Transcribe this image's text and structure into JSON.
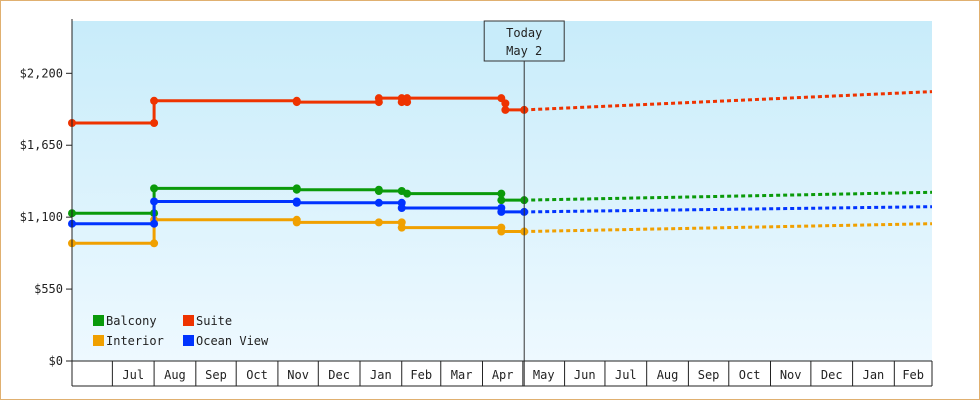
{
  "chart_data": {
    "type": "line",
    "title": "",
    "xlabel": "",
    "ylabel": "",
    "ylim": [
      0,
      2600
    ],
    "y_ticks": [
      0,
      550,
      1100,
      1650,
      2200
    ],
    "y_tick_labels": [
      "$0",
      "$550",
      "$1,100",
      "$1,650",
      "$2,200"
    ],
    "x_start": "2023-06-01",
    "x_end": "2025-03-01",
    "x_tick_labels": [
      "Jul",
      "Aug",
      "Sep",
      "Oct",
      "Nov",
      "Dec",
      "Jan",
      "Feb",
      "Mar",
      "Apr",
      "May",
      "Jun",
      "Jul",
      "Aug",
      "Sep",
      "Oct",
      "Nov",
      "Dec",
      "Jan",
      "Feb"
    ],
    "grid": false,
    "legend_position": "bottom-left",
    "today": {
      "line1": "Today",
      "line2": "May 2",
      "date": "2024-05-02"
    },
    "series": [
      {
        "name": "Balcony",
        "color": "#0a9a0a",
        "points": [
          [
            "2023-06-01",
            1130
          ],
          [
            "2023-08-01",
            1130
          ],
          [
            "2023-08-01",
            1320
          ],
          [
            "2023-11-15",
            1320
          ],
          [
            "2023-11-15",
            1310
          ],
          [
            "2024-01-15",
            1310
          ],
          [
            "2024-01-15",
            1300
          ],
          [
            "2024-02-01",
            1300
          ],
          [
            "2024-02-05",
            1280
          ],
          [
            "2024-04-15",
            1280
          ],
          [
            "2024-04-15",
            1230
          ],
          [
            "2024-05-02",
            1230
          ]
        ],
        "forecast": [
          [
            "2024-05-02",
            1230
          ],
          [
            "2025-03-01",
            1290
          ]
        ]
      },
      {
        "name": "Interior",
        "color": "#f0a000",
        "points": [
          [
            "2023-06-01",
            900
          ],
          [
            "2023-08-01",
            900
          ],
          [
            "2023-08-01",
            1080
          ],
          [
            "2023-11-15",
            1080
          ],
          [
            "2023-11-15",
            1060
          ],
          [
            "2024-01-15",
            1060
          ],
          [
            "2024-02-01",
            1060
          ],
          [
            "2024-02-01",
            1020
          ],
          [
            "2024-04-15",
            1020
          ],
          [
            "2024-04-15",
            990
          ],
          [
            "2024-05-02",
            990
          ]
        ],
        "forecast": [
          [
            "2024-05-02",
            990
          ],
          [
            "2025-03-01",
            1050
          ]
        ]
      },
      {
        "name": "Suite",
        "color": "#ee3300",
        "points": [
          [
            "2023-06-01",
            1820
          ],
          [
            "2023-08-01",
            1820
          ],
          [
            "2023-08-01",
            1990
          ],
          [
            "2023-11-15",
            1990
          ],
          [
            "2023-11-15",
            1980
          ],
          [
            "2024-01-15",
            1980
          ],
          [
            "2024-01-15",
            2010
          ],
          [
            "2024-02-01",
            2010
          ],
          [
            "2024-02-01",
            1980
          ],
          [
            "2024-02-05",
            1980
          ],
          [
            "2024-02-05",
            2010
          ],
          [
            "2024-04-15",
            2010
          ],
          [
            "2024-04-18",
            1970
          ],
          [
            "2024-04-18",
            1920
          ],
          [
            "2024-05-02",
            1920
          ]
        ],
        "forecast": [
          [
            "2024-05-02",
            1920
          ],
          [
            "2025-03-01",
            2060
          ]
        ]
      },
      {
        "name": "Ocean View",
        "color": "#0033ff",
        "points": [
          [
            "2023-06-01",
            1050
          ],
          [
            "2023-08-01",
            1050
          ],
          [
            "2023-08-01",
            1220
          ],
          [
            "2023-11-15",
            1220
          ],
          [
            "2023-11-15",
            1210
          ],
          [
            "2024-01-15",
            1210
          ],
          [
            "2024-02-01",
            1210
          ],
          [
            "2024-02-01",
            1170
          ],
          [
            "2024-04-15",
            1170
          ],
          [
            "2024-04-15",
            1140
          ],
          [
            "2024-05-02",
            1140
          ]
        ],
        "forecast": [
          [
            "2024-05-02",
            1140
          ],
          [
            "2025-03-01",
            1180
          ]
        ]
      }
    ]
  }
}
